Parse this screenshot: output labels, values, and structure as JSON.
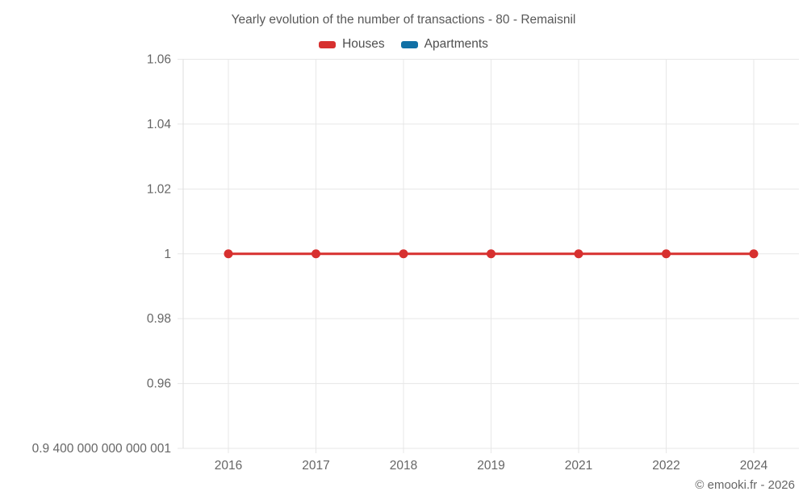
{
  "title": "Yearly evolution of the number of transactions - 80 - Remaisnil",
  "attribution": "© emooki.fr - 2026",
  "colors": {
    "grid": "#e7e7e7",
    "axis_border": "#dedede",
    "tick_text": "#666666",
    "title_text": "#585858",
    "houses": "#d7302f",
    "apartments": "#1170a5"
  },
  "chart_data": {
    "type": "line",
    "title": "Yearly evolution of the number of transactions - 80 - Remaisnil",
    "categories": [
      "2016",
      "2017",
      "2018",
      "2019",
      "2021",
      "2022",
      "2024"
    ],
    "series": [
      {
        "name": "Houses",
        "color": "#d7302f",
        "values": [
          1,
          1,
          1,
          1,
          1,
          1,
          1
        ]
      },
      {
        "name": "Apartments",
        "color": "#1170a5",
        "values": []
      }
    ],
    "xlabel": "",
    "ylabel": "",
    "ylim": [
      0.9400000000000001,
      1.06
    ],
    "grid": true,
    "legend_position": "top",
    "y_ticks": [
      {
        "value": 1.06,
        "label": "1.06"
      },
      {
        "value": 1.04,
        "label": "1.04"
      },
      {
        "value": 1.02,
        "label": "1.02"
      },
      {
        "value": 1.0,
        "label": "1"
      },
      {
        "value": 0.98,
        "label": "0.98"
      },
      {
        "value": 0.96,
        "label": "0.96"
      },
      {
        "value": 0.9400000000000001,
        "label": "0.9 400 000 000 000 001"
      }
    ]
  }
}
